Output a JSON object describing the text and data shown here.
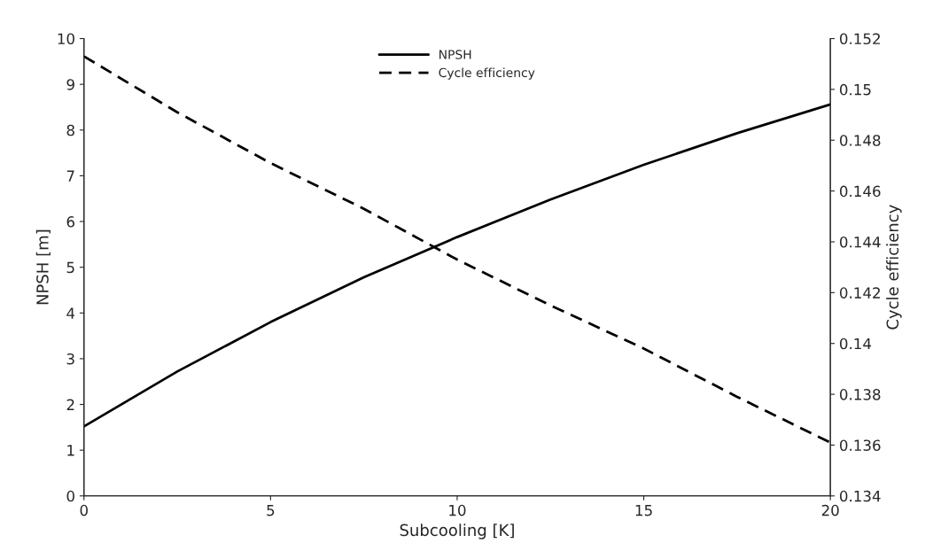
{
  "chart_data": {
    "type": "line",
    "xlabel": "Subcooling [K]",
    "ylabel": "NPSH [m]",
    "y2label": "Cycle efficiency",
    "x": [
      0,
      2.5,
      5,
      7.5,
      10,
      12.5,
      15,
      17.5,
      20
    ],
    "series": [
      {
        "name": "NPSH",
        "color": "#000000",
        "line_style": "solid",
        "values": [
          1.52,
          2.72,
          3.8,
          4.78,
          5.66,
          6.48,
          7.24,
          7.93,
          8.56
        ]
      },
      {
        "name": "Cycle efficiency",
        "color": "#000000",
        "line_style": "dashed",
        "axis": "y2",
        "values": [
          0.1513,
          0.1491,
          0.1471,
          0.1453,
          0.1433,
          0.1415,
          0.1398,
          0.1379,
          0.1361
        ]
      }
    ],
    "xlim": [
      0,
      20
    ],
    "xticks": [
      0,
      5,
      10,
      15,
      20
    ],
    "ylim": [
      0,
      10
    ],
    "yticks": [
      0,
      1,
      2,
      3,
      4,
      5,
      6,
      7,
      8,
      9,
      10
    ],
    "y2lim": [
      0.134,
      0.152
    ],
    "y2ticks": [
      0.134,
      0.136,
      0.138,
      0.14,
      0.142,
      0.144,
      0.146,
      0.148,
      0.15,
      0.152
    ],
    "grid": false,
    "legend": "top",
    "marker": "none"
  }
}
